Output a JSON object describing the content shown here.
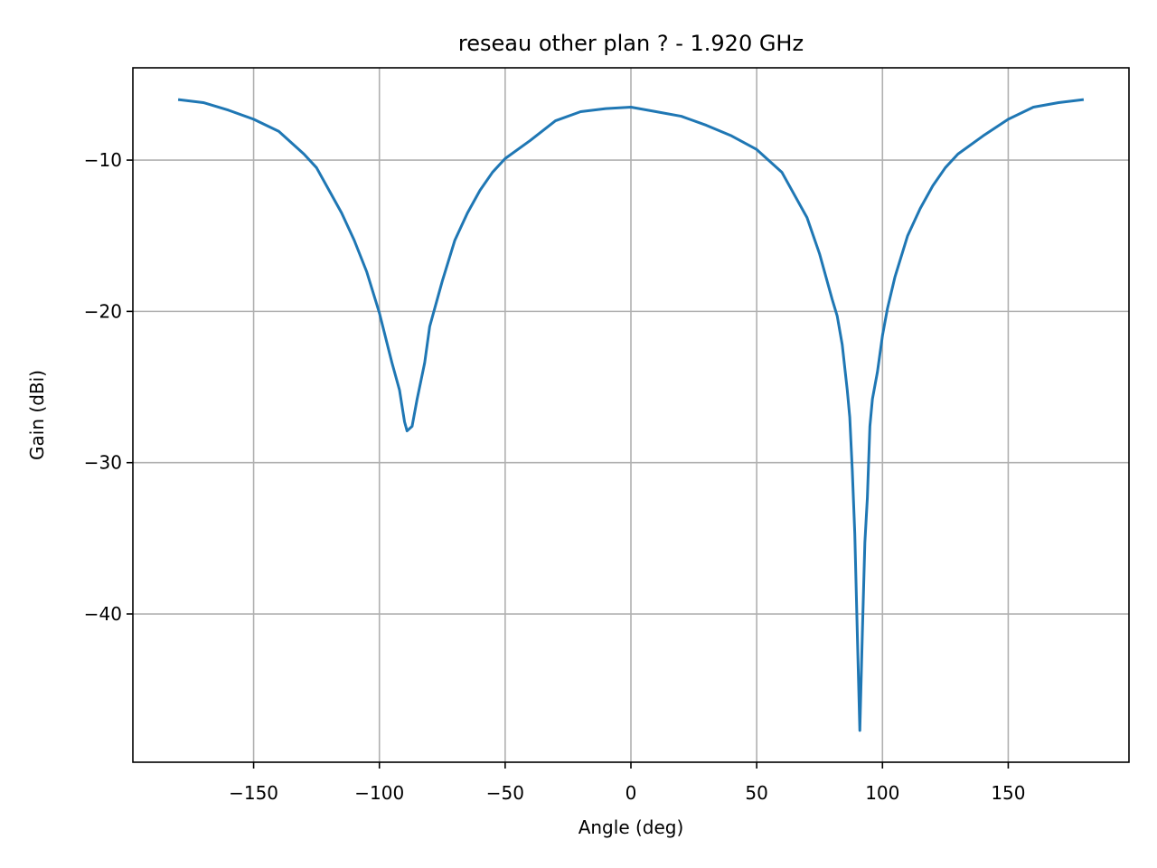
{
  "chart_data": {
    "type": "line",
    "title": "reseau other plan ? - 1.920 GHz",
    "x_label": "Angle (deg)",
    "y_label": "Gain (dBi)",
    "x": [
      -180,
      -170,
      -160,
      -150,
      -140,
      -130,
      -125,
      -120,
      -115,
      -110,
      -105,
      -100,
      -95,
      -92,
      -90,
      -89,
      -87,
      -85,
      -82,
      -80,
      -75,
      -70,
      -65,
      -60,
      -55,
      -50,
      -40,
      -30,
      -20,
      -10,
      0,
      10,
      20,
      30,
      40,
      50,
      60,
      65,
      70,
      75,
      80,
      82,
      84,
      86,
      87,
      88,
      89,
      90,
      91,
      92,
      93,
      94,
      95,
      96,
      98,
      100,
      102,
      105,
      110,
      115,
      120,
      125,
      130,
      140,
      150,
      160,
      170,
      180
    ],
    "series": [
      {
        "color": "#1f77b4",
        "values": [
          -6.0,
          -6.2,
          -6.7,
          -7.3,
          -8.1,
          -9.6,
          -10.5,
          -12.0,
          -13.5,
          -15.3,
          -17.4,
          -20.1,
          -23.4,
          -25.2,
          -27.3,
          -27.9,
          -27.6,
          -25.8,
          -23.4,
          -21.0,
          -18.0,
          -15.3,
          -13.5,
          -12.0,
          -10.8,
          -9.9,
          -8.7,
          -7.4,
          -6.8,
          -6.6,
          -6.5,
          -6.8,
          -7.1,
          -7.7,
          -8.4,
          -9.3,
          -10.8,
          -12.3,
          -13.8,
          -16.2,
          -19.2,
          -20.3,
          -22.2,
          -25.2,
          -27.0,
          -30.5,
          -34.7,
          -41.3,
          -47.7,
          -41.3,
          -35.3,
          -32.3,
          -27.6,
          -25.8,
          -24.0,
          -21.6,
          -19.8,
          -17.7,
          -15.0,
          -13.2,
          -11.7,
          -10.5,
          -9.6,
          -8.4,
          -7.3,
          -6.5,
          -6.2,
          -6.0
        ]
      }
    ],
    "xlim": [
      -198,
      198
    ],
    "ylim": [
      -49.8,
      -3.9
    ],
    "xticks": [
      {
        "value": -150,
        "label": "−150"
      },
      {
        "value": -100,
        "label": "−100"
      },
      {
        "value": -50,
        "label": "−50"
      },
      0,
      50,
      100,
      150
    ],
    "yticks": [
      {
        "value": -40,
        "label": "−40"
      },
      {
        "value": -30,
        "label": "−30"
      },
      {
        "value": -20,
        "label": "−20"
      },
      {
        "value": -10,
        "label": "−10"
      }
    ],
    "grid": true
  }
}
